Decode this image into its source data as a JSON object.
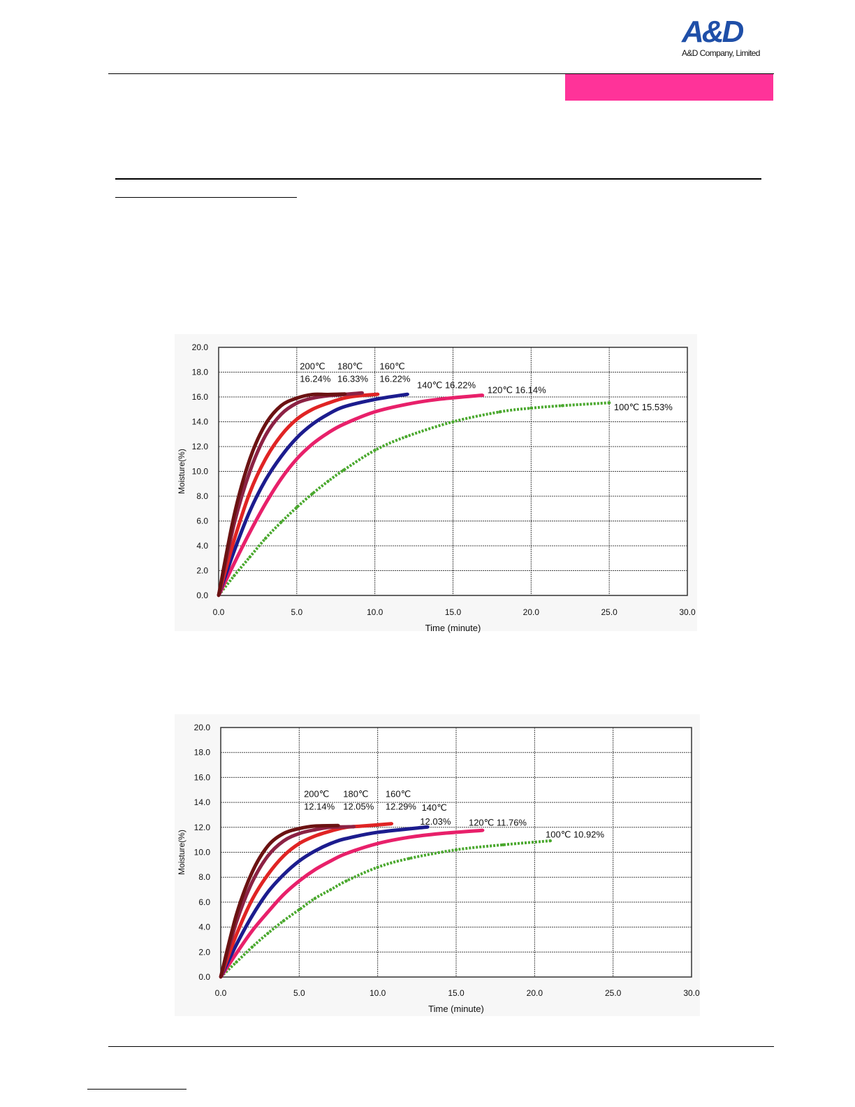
{
  "header": {
    "logo_text": "A&D",
    "logo_subtitle": "A&D Company, Limited",
    "accent_color": "#ff3399",
    "logo_color": "#1f4fa8"
  },
  "chart_data": [
    {
      "type": "scatter",
      "xlabel": "Time (minute)",
      "ylabel": "Moisture(%)",
      "xlim": [
        0,
        30
      ],
      "ylim": [
        0,
        20
      ],
      "xticks": [
        "0.0",
        "5.0",
        "10.0",
        "15.0",
        "20.0",
        "25.0",
        "30.0"
      ],
      "yticks": [
        "0.0",
        "2.0",
        "4.0",
        "6.0",
        "8.0",
        "10.0",
        "12.0",
        "14.0",
        "16.0",
        "18.0",
        "20.0"
      ],
      "grid": true,
      "series": [
        {
          "name": "200℃",
          "result": "16.24%",
          "color": "#6b1212",
          "points": [
            [
              0,
              0
            ],
            [
              1,
              6.5
            ],
            [
              2,
              11
            ],
            [
              3,
              13.8
            ],
            [
              4,
              15.3
            ],
            [
              5,
              15.9
            ],
            [
              6,
              16.2
            ],
            [
              7,
              16.2
            ],
            [
              8.1,
              16.24
            ]
          ]
        },
        {
          "name": "180℃",
          "result": "16.33%",
          "color": "#8c2244",
          "points": [
            [
              0,
              0
            ],
            [
              1,
              5.8
            ],
            [
              2,
              10
            ],
            [
              3,
              12.9
            ],
            [
              4,
              14.6
            ],
            [
              5,
              15.5
            ],
            [
              6,
              15.9
            ],
            [
              7,
              16.1
            ],
            [
              8,
              16.2
            ],
            [
              9.2,
              16.33
            ]
          ]
        },
        {
          "name": "160℃",
          "result": "16.22%",
          "color": "#e02424",
          "points": [
            [
              0,
              0
            ],
            [
              1,
              4.5
            ],
            [
              2,
              8.3
            ],
            [
              3,
              11
            ],
            [
              4,
              12.9
            ],
            [
              5,
              14.2
            ],
            [
              6,
              15
            ],
            [
              7,
              15.5
            ],
            [
              8,
              15.9
            ],
            [
              9,
              16.1
            ],
            [
              10.2,
              16.22
            ]
          ]
        },
        {
          "name": "140℃",
          "result": "16.22%",
          "color": "#1c1c8e",
          "points": [
            [
              0,
              0
            ],
            [
              1,
              3.6
            ],
            [
              2,
              6.8
            ],
            [
              3,
              9.3
            ],
            [
              4,
              11.2
            ],
            [
              5,
              12.7
            ],
            [
              6,
              13.8
            ],
            [
              7,
              14.6
            ],
            [
              8,
              15.2
            ],
            [
              10,
              15.8
            ],
            [
              12.1,
              16.22
            ]
          ]
        },
        {
          "name": "120℃",
          "result": "16.14%",
          "color": "#e8206a",
          "points": [
            [
              0,
              0
            ],
            [
              1,
              2.6
            ],
            [
              2,
              5.1
            ],
            [
              3,
              7.4
            ],
            [
              4,
              9.4
            ],
            [
              5,
              11
            ],
            [
              6,
              12.2
            ],
            [
              7,
              13.1
            ],
            [
              8,
              13.8
            ],
            [
              10,
              14.8
            ],
            [
              12,
              15.4
            ],
            [
              14,
              15.8
            ],
            [
              16.9,
              16.14
            ]
          ]
        },
        {
          "name": "100℃",
          "result": "15.53%",
          "color": "#4aa82e",
          "points": [
            [
              0,
              0
            ],
            [
              1,
              1.6
            ],
            [
              2,
              3.1
            ],
            [
              3,
              4.6
            ],
            [
              4,
              5.9
            ],
            [
              5,
              7.1
            ],
            [
              6,
              8.2
            ],
            [
              7,
              9.2
            ],
            [
              8,
              10.1
            ],
            [
              10,
              11.7
            ],
            [
              12,
              12.8
            ],
            [
              15,
              14
            ],
            [
              18,
              14.8
            ],
            [
              20,
              15.1
            ],
            [
              22,
              15.3
            ],
            [
              25,
              15.53
            ]
          ]
        }
      ],
      "annotations": [
        {
          "text": "200℃"
        },
        {
          "text": "16.24%"
        },
        {
          "text": "180℃"
        },
        {
          "text": "16.33%"
        },
        {
          "text": "160℃"
        },
        {
          "text": "16.22%"
        },
        {
          "text": "140℃ 16.22%"
        },
        {
          "text": "120℃ 16.14%"
        },
        {
          "text": "100℃ 15.53%"
        }
      ]
    },
    {
      "type": "scatter",
      "xlabel": "Time (minute)",
      "ylabel": "Moisture(%)",
      "xlim": [
        0,
        30
      ],
      "ylim": [
        0,
        20
      ],
      "xticks": [
        "0.0",
        "5.0",
        "10.0",
        "15.0",
        "20.0",
        "25.0",
        "30.0"
      ],
      "yticks": [
        "0.0",
        "2.0",
        "4.0",
        "6.0",
        "8.0",
        "10.0",
        "12.0",
        "14.0",
        "16.0",
        "18.0",
        "20.0"
      ],
      "grid": true,
      "series": [
        {
          "name": "200℃",
          "result": "12.14%",
          "color": "#6b1212",
          "points": [
            [
              0,
              0
            ],
            [
              1,
              5
            ],
            [
              2,
              8.4
            ],
            [
              3,
              10.5
            ],
            [
              4,
              11.5
            ],
            [
              5,
              11.9
            ],
            [
              6,
              12.1
            ],
            [
              7.5,
              12.14
            ]
          ]
        },
        {
          "name": "180℃",
          "result": "12.05%",
          "color": "#8c2244",
          "points": [
            [
              0,
              0
            ],
            [
              1,
              4.4
            ],
            [
              2,
              7.6
            ],
            [
              3,
              9.7
            ],
            [
              4,
              10.9
            ],
            [
              5,
              11.5
            ],
            [
              6,
              11.8
            ],
            [
              7,
              12
            ],
            [
              8.5,
              12.05
            ]
          ]
        },
        {
          "name": "160℃",
          "result": "12.29%",
          "color": "#e02424",
          "points": [
            [
              0,
              0
            ],
            [
              1,
              3.4
            ],
            [
              2,
              6.2
            ],
            [
              3,
              8.2
            ],
            [
              4,
              9.7
            ],
            [
              5,
              10.7
            ],
            [
              6,
              11.3
            ],
            [
              7,
              11.7
            ],
            [
              8,
              12
            ],
            [
              9,
              12.1
            ],
            [
              10.9,
              12.29
            ]
          ]
        },
        {
          "name": "140℃",
          "result": "12.03%",
          "color": "#1c1c8e",
          "points": [
            [
              0,
              0
            ],
            [
              1,
              2.6
            ],
            [
              2,
              4.9
            ],
            [
              3,
              6.8
            ],
            [
              4,
              8.2
            ],
            [
              5,
              9.3
            ],
            [
              6,
              10.1
            ],
            [
              7,
              10.7
            ],
            [
              8,
              11.1
            ],
            [
              10,
              11.6
            ],
            [
              13.2,
              12.03
            ]
          ]
        },
        {
          "name": "120℃",
          "result": "11.76%",
          "color": "#e8206a",
          "points": [
            [
              0,
              0
            ],
            [
              1,
              1.9
            ],
            [
              2,
              3.7
            ],
            [
              3,
              5.2
            ],
            [
              4,
              6.6
            ],
            [
              5,
              7.7
            ],
            [
              6,
              8.6
            ],
            [
              7,
              9.3
            ],
            [
              8,
              9.9
            ],
            [
              10,
              10.7
            ],
            [
              12,
              11.2
            ],
            [
              14,
              11.5
            ],
            [
              16.7,
              11.76
            ]
          ]
        },
        {
          "name": "100℃",
          "result": "10.92%",
          "color": "#4aa82e",
          "points": [
            [
              0,
              0
            ],
            [
              1,
              1.2
            ],
            [
              2,
              2.4
            ],
            [
              3,
              3.5
            ],
            [
              4,
              4.5
            ],
            [
              5,
              5.4
            ],
            [
              6,
              6.3
            ],
            [
              7,
              7
            ],
            [
              8,
              7.7
            ],
            [
              10,
              8.8
            ],
            [
              12,
              9.5
            ],
            [
              15,
              10.2
            ],
            [
              18,
              10.6
            ],
            [
              21,
              10.92
            ]
          ]
        }
      ],
      "annotations": [
        {
          "text": "200℃"
        },
        {
          "text": "12.14%"
        },
        {
          "text": "180℃"
        },
        {
          "text": "12.05%"
        },
        {
          "text": "160℃"
        },
        {
          "text": "12.29%"
        },
        {
          "text": "140℃"
        },
        {
          "text": "12.03%"
        },
        {
          "text": "120℃ 11.76%"
        },
        {
          "text": "100℃ 10.92%"
        }
      ]
    }
  ]
}
